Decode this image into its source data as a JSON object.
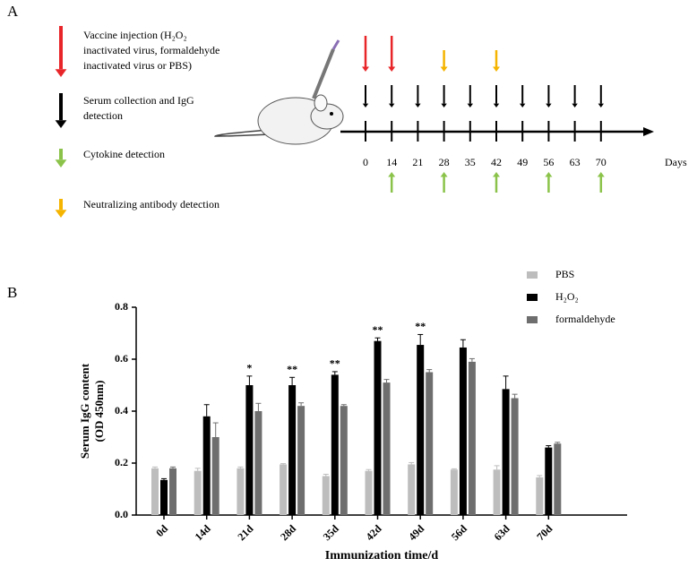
{
  "panel_a": {
    "label": "A",
    "legend": [
      {
        "lines": [
          "Vaccine injection (H₂O₂",
          "inactivated virus, formaldehyde",
          "inactivated virus or PBS)"
        ]
      },
      {
        "lines": [
          "Serum collection and IgG",
          "detection"
        ]
      },
      {
        "lines": [
          "Cytokine detection"
        ]
      },
      {
        "lines": [
          "Neutralizing antibody detection"
        ]
      }
    ],
    "days": [
      0,
      14,
      21,
      28,
      35,
      42,
      49,
      56,
      63,
      70
    ],
    "axis_label": "Days"
  },
  "chart_data": {
    "type": "bar",
    "panel_label": "B",
    "categories": [
      "0d",
      "14d",
      "21d",
      "28d",
      "35d",
      "42d",
      "49d",
      "56d",
      "63d",
      "70d"
    ],
    "series": [
      {
        "name": "PBS",
        "color": "#bdbdbd",
        "values": [
          0.18,
          0.17,
          0.18,
          0.195,
          0.15,
          0.17,
          0.195,
          0.175,
          0.175,
          0.145
        ],
        "errors": [
          0.005,
          0.01,
          0.005,
          0.003,
          0.007,
          0.005,
          0.007,
          0.003,
          0.015,
          0.007
        ]
      },
      {
        "name": "H₂O₂",
        "color": "#000000",
        "values": [
          0.135,
          0.38,
          0.5,
          0.5,
          0.54,
          0.67,
          0.655,
          0.645,
          0.485,
          0.26
        ],
        "errors": [
          0.005,
          0.045,
          0.035,
          0.03,
          0.012,
          0.012,
          0.04,
          0.03,
          0.05,
          0.007
        ]
      },
      {
        "name": "formaldehyde",
        "color": "#6e6e6e",
        "values": [
          0.18,
          0.3,
          0.4,
          0.42,
          0.42,
          0.51,
          0.55,
          0.59,
          0.45,
          0.275
        ],
        "errors": [
          0.005,
          0.055,
          0.03,
          0.012,
          0.005,
          0.012,
          0.01,
          0.012,
          0.015,
          0.005
        ]
      }
    ],
    "significance": [
      null,
      null,
      "*",
      "**",
      "**",
      "**",
      "**",
      null,
      null,
      null
    ],
    "ylim": [
      0,
      0.8
    ],
    "yticks": [
      {
        "value": 0,
        "label": "0.0"
      },
      0.2,
      0.4,
      0.6,
      0.8
    ],
    "ylabel": [
      "Serum IgG content",
      "(OD 450nm)"
    ],
    "xlabel": "Immunization time/d"
  }
}
